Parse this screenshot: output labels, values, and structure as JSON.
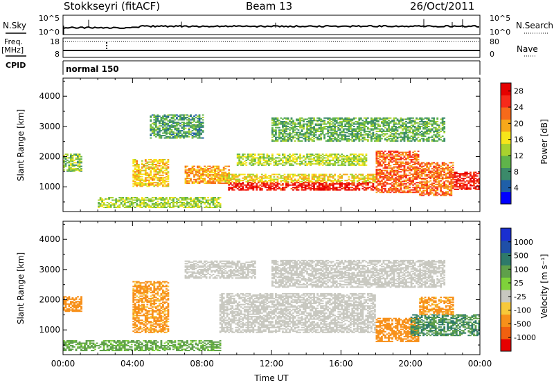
{
  "header": {
    "station": "Stokkseyri (fitACF)",
    "beam": "Beam 13",
    "date": "26/Oct/2011"
  },
  "status_panel": {
    "left_labels": {
      "nsky": "N.Sky",
      "freq_line1": "Freq.",
      "freq_line2": "[MHz]",
      "cpid": "CPID"
    },
    "right_labels": {
      "nsearch": "N.Search",
      "nave": "Nave"
    },
    "nsky_ticks": [
      "10^5",
      "10^0"
    ],
    "nsearch_ticks": [
      "10^5",
      "10^0"
    ],
    "freq_ticks": [
      "18",
      "8"
    ],
    "nave_ticks": [
      "80",
      "0"
    ],
    "cpid_text": "normal 150"
  },
  "colors": {
    "power_scale": [
      "#0000ff",
      "#1f5fa8",
      "#3b8a6a",
      "#5fb44a",
      "#a8d22e",
      "#f7e51a",
      "#f7a81a",
      "#f76a1a",
      "#f72a1a",
      "#e60000"
    ],
    "velocity_scale": [
      "#1a2fd0",
      "#1f4fa8",
      "#2e7a6a",
      "#5fa04a",
      "#7fd23a",
      "#c8c8c0",
      "#f7c83a",
      "#f7901a",
      "#f06010",
      "#e60000"
    ]
  },
  "chart_data": [
    {
      "type": "heatmap",
      "name": "power",
      "xlabel": "",
      "ylabel": "Slant Range [km]",
      "x_ticks": [
        "00:00",
        "04:00",
        "08:00",
        "12:00",
        "16:00",
        "20:00",
        "00:00"
      ],
      "x_range_hours": [
        0,
        24
      ],
      "y_ticks": [
        1000,
        2000,
        3000,
        4000
      ],
      "ylim": [
        180,
        4600
      ],
      "colorbar": {
        "label": "Power [dB]",
        "ticks": [
          4,
          8,
          12,
          16,
          20,
          24,
          28
        ],
        "range": [
          0,
          30
        ]
      },
      "regions": [
        {
          "t": [
            9.5,
            18.0
          ],
          "r": [
            880,
            1150
          ],
          "value": 27
        },
        {
          "t": [
            7.0,
            9.5
          ],
          "r": [
            1100,
            1700
          ],
          "value": 20
        },
        {
          "t": [
            9.0,
            18.0
          ],
          "r": [
            1150,
            1400
          ],
          "value": 17
        },
        {
          "t": [
            10.0,
            17.5
          ],
          "r": [
            1700,
            2100
          ],
          "value": 14
        },
        {
          "t": [
            18.0,
            20.5
          ],
          "r": [
            800,
            2200
          ],
          "value": 23
        },
        {
          "t": [
            20.5,
            22.5
          ],
          "r": [
            700,
            1800
          ],
          "value": 22
        },
        {
          "t": [
            22.5,
            24.0
          ],
          "r": [
            900,
            1500
          ],
          "value": 27
        },
        {
          "t": [
            0.0,
            1.0
          ],
          "r": [
            1500,
            2100
          ],
          "value": 12
        },
        {
          "t": [
            4.0,
            6.0
          ],
          "r": [
            1000,
            1900
          ],
          "value": 18
        },
        {
          "t": [
            2.0,
            9.0
          ],
          "r": [
            300,
            650
          ],
          "value": 13
        },
        {
          "t": [
            5.0,
            8.0
          ],
          "r": [
            2600,
            3400
          ],
          "value": 9
        },
        {
          "t": [
            12.0,
            22.0
          ],
          "r": [
            2500,
            3300
          ],
          "value": 10
        }
      ]
    },
    {
      "type": "heatmap",
      "name": "velocity",
      "xlabel": "Time UT",
      "ylabel": "Slant Range [km]",
      "x_ticks": [
        "00:00",
        "04:00",
        "08:00",
        "12:00",
        "16:00",
        "20:00",
        "00:00"
      ],
      "x_range_hours": [
        0,
        24
      ],
      "y_ticks": [
        1000,
        2000,
        3000,
        4000
      ],
      "ylim": [
        180,
        4600
      ],
      "colorbar": {
        "label": "Velocity [m s⁻¹]",
        "ticks": [
          "1000",
          "500",
          "100",
          "25",
          "-25",
          "-100",
          "-500",
          "-1000"
        ]
      },
      "regions": [
        {
          "t": [
            9.0,
            18.0
          ],
          "r": [
            900,
            2200
          ],
          "value": 0
        },
        {
          "t": [
            7.0,
            11.0
          ],
          "r": [
            2700,
            3300
          ],
          "value": 0
        },
        {
          "t": [
            18.0,
            20.5
          ],
          "r": [
            600,
            1400
          ],
          "value": -200
        },
        {
          "t": [
            20.0,
            24.0
          ],
          "r": [
            800,
            1500
          ],
          "value": 300
        },
        {
          "t": [
            20.5,
            22.5
          ],
          "r": [
            1500,
            2100
          ],
          "value": -150
        },
        {
          "t": [
            0.0,
            1.0
          ],
          "r": [
            1600,
            2100
          ],
          "value": -200
        },
        {
          "t": [
            4.0,
            6.0
          ],
          "r": [
            900,
            2600
          ],
          "value": -150
        },
        {
          "t": [
            0.0,
            9.0
          ],
          "r": [
            300,
            650
          ],
          "value": 150
        },
        {
          "t": [
            12.0,
            22.0
          ],
          "r": [
            2400,
            3300
          ],
          "value": 0
        }
      ]
    }
  ]
}
